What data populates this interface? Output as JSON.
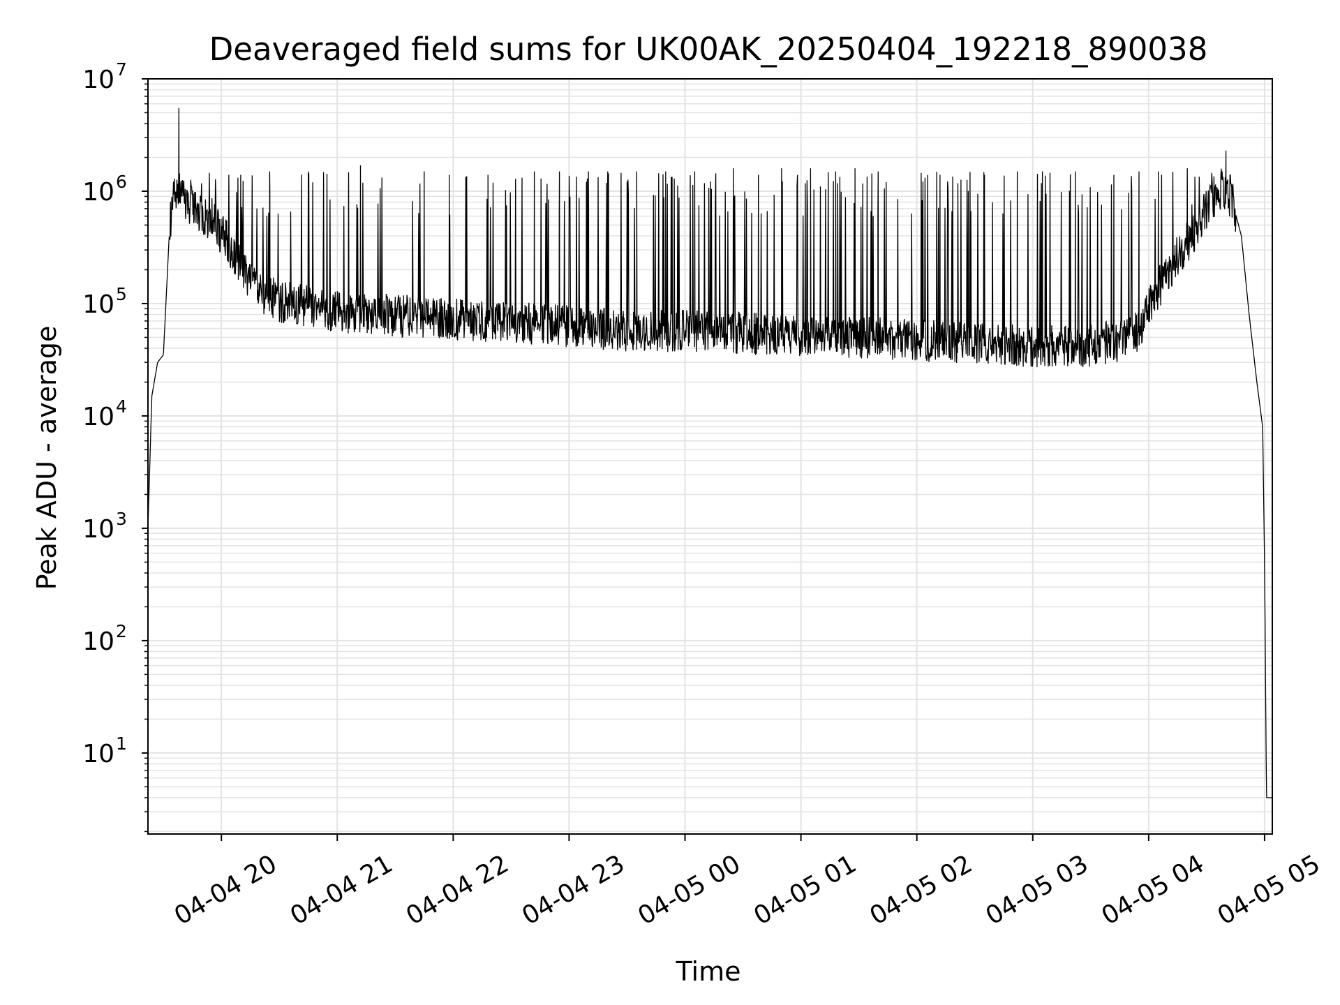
{
  "chart_data": {
    "type": "line",
    "title": "Deaveraged field sums for UK00AK_20250404_192218_890038",
    "xlabel": "Time",
    "ylabel": "Peak ADU - average",
    "yscale": "log",
    "ylim": [
      1.9,
      10000000
    ],
    "xlim": [
      "2025-04-04 19:22",
      "2025-04-05 05:04"
    ],
    "grid": true,
    "line_color": "#000000",
    "grid_color": "#e3e3e3",
    "x_ticks": [
      {
        "value": "2025-04-04 20:00",
        "label": "04-04 20"
      },
      {
        "value": "2025-04-04 21:00",
        "label": "04-04 21"
      },
      {
        "value": "2025-04-04 22:00",
        "label": "04-04 22"
      },
      {
        "value": "2025-04-04 23:00",
        "label": "04-04 23"
      },
      {
        "value": "2025-04-05 00:00",
        "label": "04-05 00"
      },
      {
        "value": "2025-04-05 01:00",
        "label": "04-05 01"
      },
      {
        "value": "2025-04-05 02:00",
        "label": "04-05 02"
      },
      {
        "value": "2025-04-05 03:00",
        "label": "04-05 03"
      },
      {
        "value": "2025-04-05 04:00",
        "label": "04-05 04"
      },
      {
        "value": "2025-04-05 05:00",
        "label": "04-05 05"
      }
    ],
    "y_ticks": [
      {
        "value": 10,
        "base": "10",
        "exp": "1"
      },
      {
        "value": 100,
        "base": "10",
        "exp": "2"
      },
      {
        "value": 1000,
        "base": "10",
        "exp": "3"
      },
      {
        "value": 10000,
        "base": "10",
        "exp": "4"
      },
      {
        "value": 100000,
        "base": "10",
        "exp": "5"
      },
      {
        "value": 1000000,
        "base": "10",
        "exp": "6"
      },
      {
        "value": 10000000,
        "base": "10",
        "exp": "7"
      }
    ],
    "series": [
      {
        "baseline": {
          "x": [
            "2025-04-04 19:22",
            "2025-04-04 19:24",
            "2025-04-04 19:27",
            "2025-04-04 19:30",
            "2025-04-04 19:33",
            "2025-04-04 19:35",
            "2025-04-04 19:38",
            "2025-04-04 19:40",
            "2025-04-04 19:43",
            "2025-04-04 19:45",
            "2025-04-04 19:48",
            "2025-04-04 19:52",
            "2025-04-04 19:56",
            "2025-04-04 20:00",
            "2025-04-04 20:05",
            "2025-04-04 20:10",
            "2025-04-04 20:15",
            "2025-04-04 20:20",
            "2025-04-04 20:30",
            "2025-04-04 20:45",
            "2025-04-04 21:00",
            "2025-04-04 21:30",
            "2025-04-04 22:00",
            "2025-04-04 22:30",
            "2025-04-04 23:00",
            "2025-04-04 23:30",
            "2025-04-05 00:00",
            "2025-04-05 00:30",
            "2025-04-05 01:00",
            "2025-04-05 01:30",
            "2025-04-05 02:00",
            "2025-04-05 02:30",
            "2025-04-05 03:00",
            "2025-04-05 03:30",
            "2025-04-05 03:45",
            "2025-04-05 03:55",
            "2025-04-05 04:05",
            "2025-04-05 04:15",
            "2025-04-05 04:22",
            "2025-04-05 04:26",
            "2025-04-05 04:30",
            "2025-04-05 04:34",
            "2025-04-05 04:38",
            "2025-04-05 04:43",
            "2025-04-05 04:48",
            "2025-04-05 04:52",
            "2025-04-05 04:56",
            "2025-04-05 04:59",
            "2025-04-05 05:00",
            "2025-04-05 05:01",
            "2025-04-05 05:02",
            "2025-04-05 05:04"
          ],
          "y": [
            1000,
            15000,
            30000,
            35000,
            400000,
            900000,
            1000000,
            800000,
            700000,
            650000,
            600000,
            550000,
            500000,
            400000,
            300000,
            200000,
            150000,
            120000,
            100000,
            90000,
            80000,
            75000,
            70000,
            65000,
            60000,
            55000,
            55000,
            52000,
            50000,
            48000,
            45000,
            42000,
            40000,
            40000,
            45000,
            55000,
            130000,
            250000,
            380000,
            500000,
            650000,
            850000,
            1000000,
            850000,
            400000,
            80000,
            20000,
            8000,
            500,
            4,
            4,
            4
          ]
        },
        "spikes": {
          "x": [
            "2025-04-04 19:38",
            "2025-04-04 20:10",
            "2025-04-04 20:25",
            "2025-04-04 20:45",
            "2025-04-04 21:12",
            "2025-04-04 21:45",
            "2025-04-04 21:58",
            "2025-04-04 22:18",
            "2025-04-04 22:42",
            "2025-04-04 22:55",
            "2025-04-04 23:10",
            "2025-04-04 23:20",
            "2025-04-04 23:35",
            "2025-04-04 23:50",
            "2025-04-05 00:05",
            "2025-04-05 00:25",
            "2025-04-05 00:38",
            "2025-04-05 00:50",
            "2025-04-05 01:05",
            "2025-04-05 01:18",
            "2025-04-05 01:28",
            "2025-04-05 01:40",
            "2025-04-05 02:12",
            "2025-04-05 02:35",
            "2025-04-05 02:52",
            "2025-04-05 03:05",
            "2025-04-05 03:22",
            "2025-04-05 03:42",
            "2025-04-05 03:55",
            "2025-04-05 04:05",
            "2025-04-05 04:20",
            "2025-04-05 04:40"
          ],
          "y": [
            5500000,
            1400000,
            1500000,
            1500000,
            1700000,
            1500000,
            1400000,
            1400000,
            1500000,
            1500000,
            1500000,
            1500000,
            1500000,
            1500000,
            1500000,
            1600000,
            1400000,
            1600000,
            1600000,
            1500000,
            1600000,
            1500000,
            1400000,
            1400000,
            1500000,
            1500000,
            1500000,
            1400000,
            1500000,
            1500000,
            1600000,
            2300000
          ]
        }
      }
    ]
  }
}
